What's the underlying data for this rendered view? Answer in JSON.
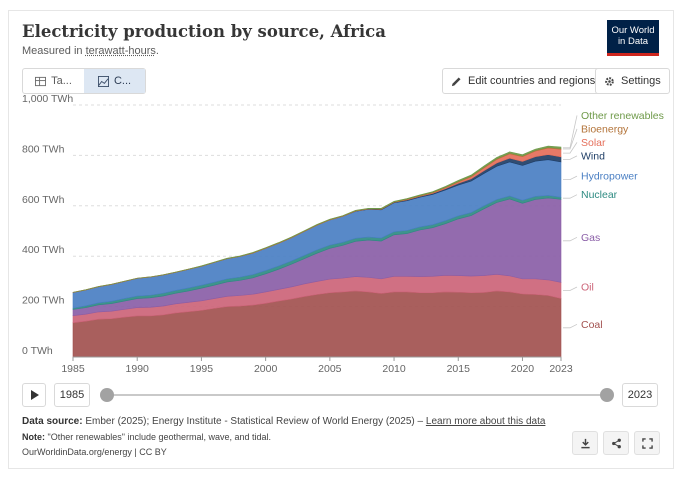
{
  "header": {
    "title": "Electricity production by source, Africa",
    "subtitle_prefix": "Measured in ",
    "subtitle_unit": "terawatt-hours",
    "subtitle_suffix": ".",
    "logo_line1": "Our World",
    "logo_line2": "in Data"
  },
  "tabs": [
    {
      "label": "Ta...",
      "icon": "table-icon",
      "active": false
    },
    {
      "label": "C...",
      "icon": "chart-icon",
      "active": true
    }
  ],
  "toolbar": {
    "edit_label": "Edit countries and regions",
    "settings_label": "Settings"
  },
  "timeline": {
    "start_year": "1985",
    "end_year": "2023",
    "start_fraction": 0.0,
    "end_fraction": 1.0
  },
  "footer": {
    "source_label": "Data source:",
    "source_text": "Ember (2025); Energy Institute - Statistical Review of World Energy (2025) –",
    "source_link": "Learn more about this data",
    "note_label": "Note:",
    "note_text": "\"Other renewables\" include geothermal, wave, and tidal.",
    "credit": "OurWorldinData.org/energy | CC BY"
  },
  "chart_data": {
    "type": "area",
    "stacked": true,
    "ylabel": "",
    "yunit": "TWh",
    "ylim": [
      0,
      1000
    ],
    "yticks": [
      0,
      200,
      400,
      600,
      800,
      1000
    ],
    "ytick_labels": [
      "0 TWh",
      "200 TWh",
      "400 TWh",
      "600 TWh",
      "800 TWh",
      "1,000 TWh"
    ],
    "xlim": [
      1985,
      2023
    ],
    "xticks": [
      1985,
      1990,
      1995,
      2000,
      2005,
      2010,
      2015,
      2020,
      2023
    ],
    "xtick_labels": [
      "1985",
      "1990",
      "1995",
      "2000",
      "2005",
      "2010",
      "2015",
      "2020",
      "2023"
    ],
    "grid": true,
    "legend_placement": "right",
    "x": [
      1985,
      1986,
      1987,
      1988,
      1989,
      1990,
      1991,
      1992,
      1993,
      1994,
      1995,
      1996,
      1997,
      1998,
      1999,
      2000,
      2001,
      2002,
      2003,
      2004,
      2005,
      2006,
      2007,
      2008,
      2009,
      2010,
      2011,
      2012,
      2013,
      2014,
      2015,
      2016,
      2017,
      2018,
      2019,
      2020,
      2021,
      2022,
      2023
    ],
    "series": [
      {
        "name": "Coal",
        "color": "#a2514f",
        "values": [
          136,
          142,
          150,
          152,
          158,
          163,
          163,
          167,
          175,
          180,
          185,
          193,
          200,
          202,
          206,
          213,
          222,
          230,
          240,
          248,
          255,
          258,
          262,
          258,
          252,
          258,
          258,
          255,
          255,
          258,
          257,
          255,
          256,
          262,
          258,
          250,
          248,
          244,
          232
        ]
      },
      {
        "name": "Oil",
        "color": "#cc6478",
        "values": [
          28,
          28,
          29,
          30,
          31,
          33,
          34,
          35,
          36,
          37,
          38,
          39,
          41,
          42,
          43,
          45,
          46,
          48,
          50,
          52,
          54,
          55,
          57,
          58,
          58,
          62,
          62,
          64,
          65,
          66,
          66,
          66,
          67,
          66,
          64,
          60,
          62,
          62,
          64
        ]
      },
      {
        "name": "Gas",
        "color": "#8a5ea7",
        "values": [
          25,
          26,
          28,
          30,
          33,
          36,
          38,
          40,
          42,
          45,
          50,
          53,
          57,
          60,
          65,
          72,
          80,
          90,
          100,
          112,
          122,
          130,
          140,
          148,
          150,
          165,
          170,
          185,
          193,
          205,
          225,
          240,
          265,
          285,
          305,
          300,
          315,
          325,
          330
        ]
      },
      {
        "name": "Nuclear",
        "color": "#2e8b82",
        "values": [
          5,
          7,
          8,
          9,
          10,
          10,
          10,
          11,
          11,
          12,
          12,
          12,
          12,
          13,
          13,
          13,
          13,
          13,
          13,
          13,
          13,
          12,
          12,
          12,
          12,
          12,
          12,
          12,
          12,
          12,
          12,
          12,
          12,
          12,
          12,
          12,
          12,
          10,
          8
        ]
      },
      {
        "name": "Hydropower",
        "color": "#4a7fc3",
        "values": [
          62,
          63,
          64,
          67,
          68,
          70,
          72,
          72,
          72,
          74,
          75,
          78,
          80,
          82,
          85,
          88,
          90,
          92,
          95,
          98,
          100,
          103,
          107,
          110,
          112,
          115,
          118,
          118,
          120,
          122,
          122,
          125,
          128,
          132,
          135,
          138,
          140,
          142,
          140
        ]
      },
      {
        "name": "Wind",
        "color": "#1f3e66",
        "values": [
          0,
          0,
          0,
          0,
          0,
          0,
          0,
          0,
          0,
          0,
          0,
          0,
          0,
          0,
          0,
          0,
          0,
          0,
          0,
          0,
          0,
          0,
          1,
          1,
          2,
          2,
          3,
          3,
          4,
          5,
          7,
          9,
          11,
          13,
          15,
          16,
          18,
          20,
          20
        ]
      },
      {
        "name": "Solar",
        "color": "#e56e5a",
        "values": [
          0,
          0,
          0,
          0,
          0,
          0,
          0,
          0,
          0,
          0,
          0,
          0,
          0,
          0,
          0,
          0,
          0,
          0,
          0,
          0,
          0,
          0,
          0,
          0,
          0,
          0,
          1,
          1,
          2,
          3,
          5,
          8,
          11,
          14,
          17,
          19,
          22,
          26,
          30
        ]
      },
      {
        "name": "Bioenergy",
        "color": "#b3743a",
        "values": [
          1,
          1,
          1,
          1,
          1,
          1,
          1,
          1,
          1,
          1,
          1,
          1,
          1,
          1,
          2,
          2,
          2,
          2,
          2,
          2,
          2,
          2,
          2,
          2,
          2,
          2,
          3,
          3,
          3,
          3,
          3,
          3,
          3,
          3,
          3,
          3,
          3,
          3,
          3
        ]
      },
      {
        "name": "Other renewables",
        "color": "#6f9a4a",
        "values": [
          0,
          0,
          0,
          0,
          0,
          0,
          0,
          0,
          0,
          0,
          1,
          1,
          1,
          1,
          1,
          1,
          1,
          1,
          1,
          1,
          1,
          1,
          1,
          1,
          2,
          2,
          2,
          2,
          2,
          3,
          4,
          4,
          5,
          5,
          5,
          5,
          5,
          5,
          6
        ]
      }
    ]
  }
}
